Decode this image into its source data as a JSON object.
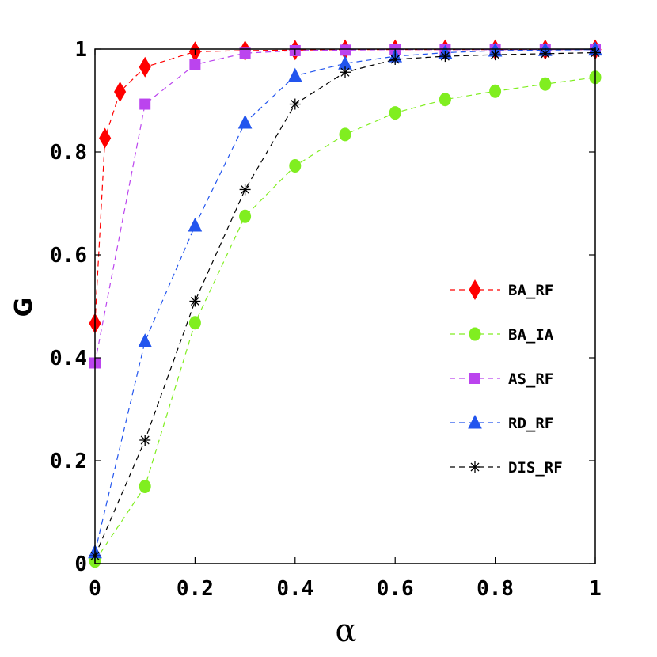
{
  "chart_data": {
    "type": "line",
    "xlabel": "α",
    "ylabel": "G",
    "xlim": [
      0,
      1
    ],
    "ylim": [
      0,
      1
    ],
    "xticks": [
      "0",
      "0.2",
      "0.4",
      "0.6",
      "0.8",
      "1"
    ],
    "yticks": [
      "0",
      "0.2",
      "0.4",
      "0.6",
      "0.8",
      "1"
    ],
    "grid": false,
    "legend_position": "right",
    "series": [
      {
        "name": "BA_RF",
        "color": "#ff0000",
        "marker": "diamond",
        "x": [
          0,
          0.02,
          0.05,
          0.1,
          0.2,
          0.3,
          0.4,
          0.5,
          0.6,
          0.7,
          0.8,
          0.9,
          1.0
        ],
        "y": [
          0.467,
          0.827,
          0.917,
          0.965,
          0.995,
          0.997,
          0.998,
          0.999,
          0.999,
          0.999,
          0.999,
          0.999,
          0.999
        ]
      },
      {
        "name": "BA_IA",
        "color": "#80ee20",
        "marker": "circle",
        "x": [
          0,
          0.1,
          0.2,
          0.3,
          0.4,
          0.5,
          0.6,
          0.7,
          0.8,
          0.9,
          1.0
        ],
        "y": [
          0.005,
          0.15,
          0.468,
          0.675,
          0.773,
          0.834,
          0.876,
          0.902,
          0.918,
          0.932,
          0.945
        ]
      },
      {
        "name": "AS_RF",
        "color": "#bb44ee",
        "marker": "square",
        "x": [
          0,
          0.1,
          0.2,
          0.3,
          0.4,
          0.5,
          0.6,
          0.7,
          0.8,
          0.9,
          1.0
        ],
        "y": [
          0.39,
          0.893,
          0.97,
          0.992,
          0.997,
          0.998,
          0.999,
          0.999,
          0.999,
          0.999,
          0.999
        ]
      },
      {
        "name": "RD_RF",
        "color": "#2255ee",
        "marker": "triangle",
        "x": [
          0,
          0.1,
          0.2,
          0.3,
          0.4,
          0.5,
          0.6,
          0.7,
          0.8,
          0.9,
          1.0
        ],
        "y": [
          0.022,
          0.432,
          0.657,
          0.857,
          0.948,
          0.972,
          0.986,
          0.993,
          0.997,
          0.998,
          0.999
        ]
      },
      {
        "name": "DIS_RF",
        "color": "#000000",
        "marker": "asterisk",
        "x": [
          0,
          0.1,
          0.2,
          0.3,
          0.4,
          0.5,
          0.6,
          0.7,
          0.8,
          0.9,
          1.0
        ],
        "y": [
          0.015,
          0.24,
          0.51,
          0.727,
          0.893,
          0.955,
          0.98,
          0.986,
          0.989,
          0.991,
          0.993
        ]
      }
    ]
  }
}
